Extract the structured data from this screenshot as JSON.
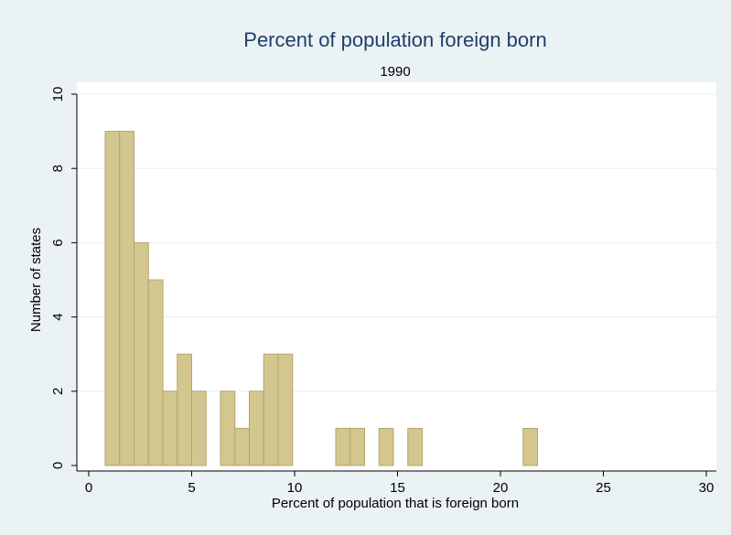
{
  "chart_data": {
    "type": "histogram",
    "title": "Percent of population foreign born",
    "subtitle": "1990",
    "x_label": "Percent of population that is foreign born",
    "y_label": "Number of states",
    "bins": [
      0.8,
      1.5,
      2.2,
      2.9,
      3.6,
      4.3,
      5.0,
      5.7,
      6.4,
      7.1,
      7.8,
      8.5,
      9.2,
      9.9,
      10.6,
      11.3,
      12.0,
      12.7,
      13.4,
      14.1,
      14.8,
      15.5,
      16.2,
      16.9,
      17.6,
      18.3,
      19.0,
      19.7,
      20.4,
      21.1,
      21.8
    ],
    "values": [
      9,
      9,
      6,
      5,
      2,
      3,
      2,
      0,
      2,
      1,
      2,
      3,
      3,
      0,
      0,
      0,
      1,
      1,
      0,
      1,
      0,
      1,
      0,
      0,
      0,
      0,
      0,
      0,
      0,
      1
    ],
    "color": "#d3c68f",
    "xlim": [
      0,
      30
    ],
    "xticks": [
      0,
      5,
      10,
      15,
      20,
      25,
      30
    ],
    "ylim": [
      0,
      10
    ],
    "yticks": [
      0,
      2,
      4,
      6,
      8,
      10
    ],
    "grid": true
  }
}
